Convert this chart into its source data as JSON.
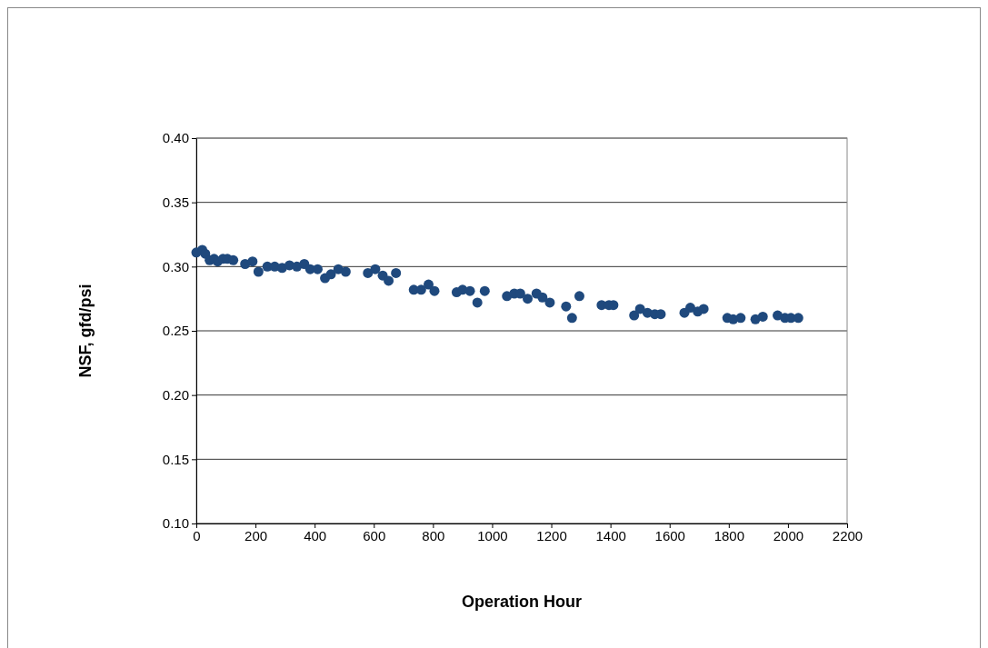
{
  "chart_data": {
    "type": "scatter",
    "xlabel": "Operation Hour",
    "ylabel": "NSF, gfd/psi",
    "xlim": [
      0,
      2200
    ],
    "xticks": [
      0,
      200,
      400,
      600,
      800,
      1000,
      1200,
      1400,
      1600,
      1800,
      2000,
      2200
    ],
    "ylim": [
      0.1,
      0.4
    ],
    "yticks": [
      {
        "value": 0.1,
        "label": "0.10"
      },
      {
        "value": 0.15,
        "label": "0.15"
      },
      {
        "value": 0.2,
        "label": "0.20"
      },
      {
        "value": 0.25,
        "label": "0.25"
      },
      {
        "value": 0.3,
        "label": "0.30"
      },
      {
        "value": 0.35,
        "label": "0.35"
      },
      {
        "value": 0.4,
        "label": "0.40"
      }
    ],
    "grid": "y",
    "marker": "circle",
    "series": [
      {
        "color": "#1f497d",
        "x": [
          0,
          20,
          30,
          45,
          60,
          72,
          90,
          105,
          125,
          165,
          190,
          210,
          240,
          265,
          290,
          315,
          340,
          365,
          385,
          410,
          435,
          455,
          480,
          505,
          580,
          605,
          630,
          650,
          675,
          735,
          760,
          785,
          805,
          880,
          900,
          925,
          950,
          975,
          1050,
          1075,
          1095,
          1120,
          1150,
          1170,
          1195,
          1250,
          1270,
          1295,
          1370,
          1395,
          1410,
          1480,
          1500,
          1525,
          1550,
          1570,
          1650,
          1670,
          1695,
          1715,
          1795,
          1815,
          1840,
          1890,
          1915,
          1965,
          1990,
          2010,
          2035
        ],
        "values": [
          0.311,
          0.313,
          0.31,
          0.305,
          0.306,
          0.304,
          0.306,
          0.306,
          0.305,
          0.302,
          0.304,
          0.296,
          0.3,
          0.3,
          0.299,
          0.301,
          0.3,
          0.302,
          0.298,
          0.298,
          0.291,
          0.294,
          0.298,
          0.296,
          0.295,
          0.298,
          0.293,
          0.289,
          0.295,
          0.282,
          0.282,
          0.286,
          0.281,
          0.28,
          0.282,
          0.281,
          0.272,
          0.281,
          0.277,
          0.279,
          0.279,
          0.275,
          0.279,
          0.276,
          0.272,
          0.269,
          0.26,
          0.277,
          0.27,
          0.27,
          0.27,
          0.262,
          0.267,
          0.264,
          0.263,
          0.263,
          0.264,
          0.268,
          0.265,
          0.267,
          0.26,
          0.259,
          0.26,
          0.259,
          0.261,
          0.262,
          0.26,
          0.26,
          0.26
        ]
      }
    ]
  }
}
